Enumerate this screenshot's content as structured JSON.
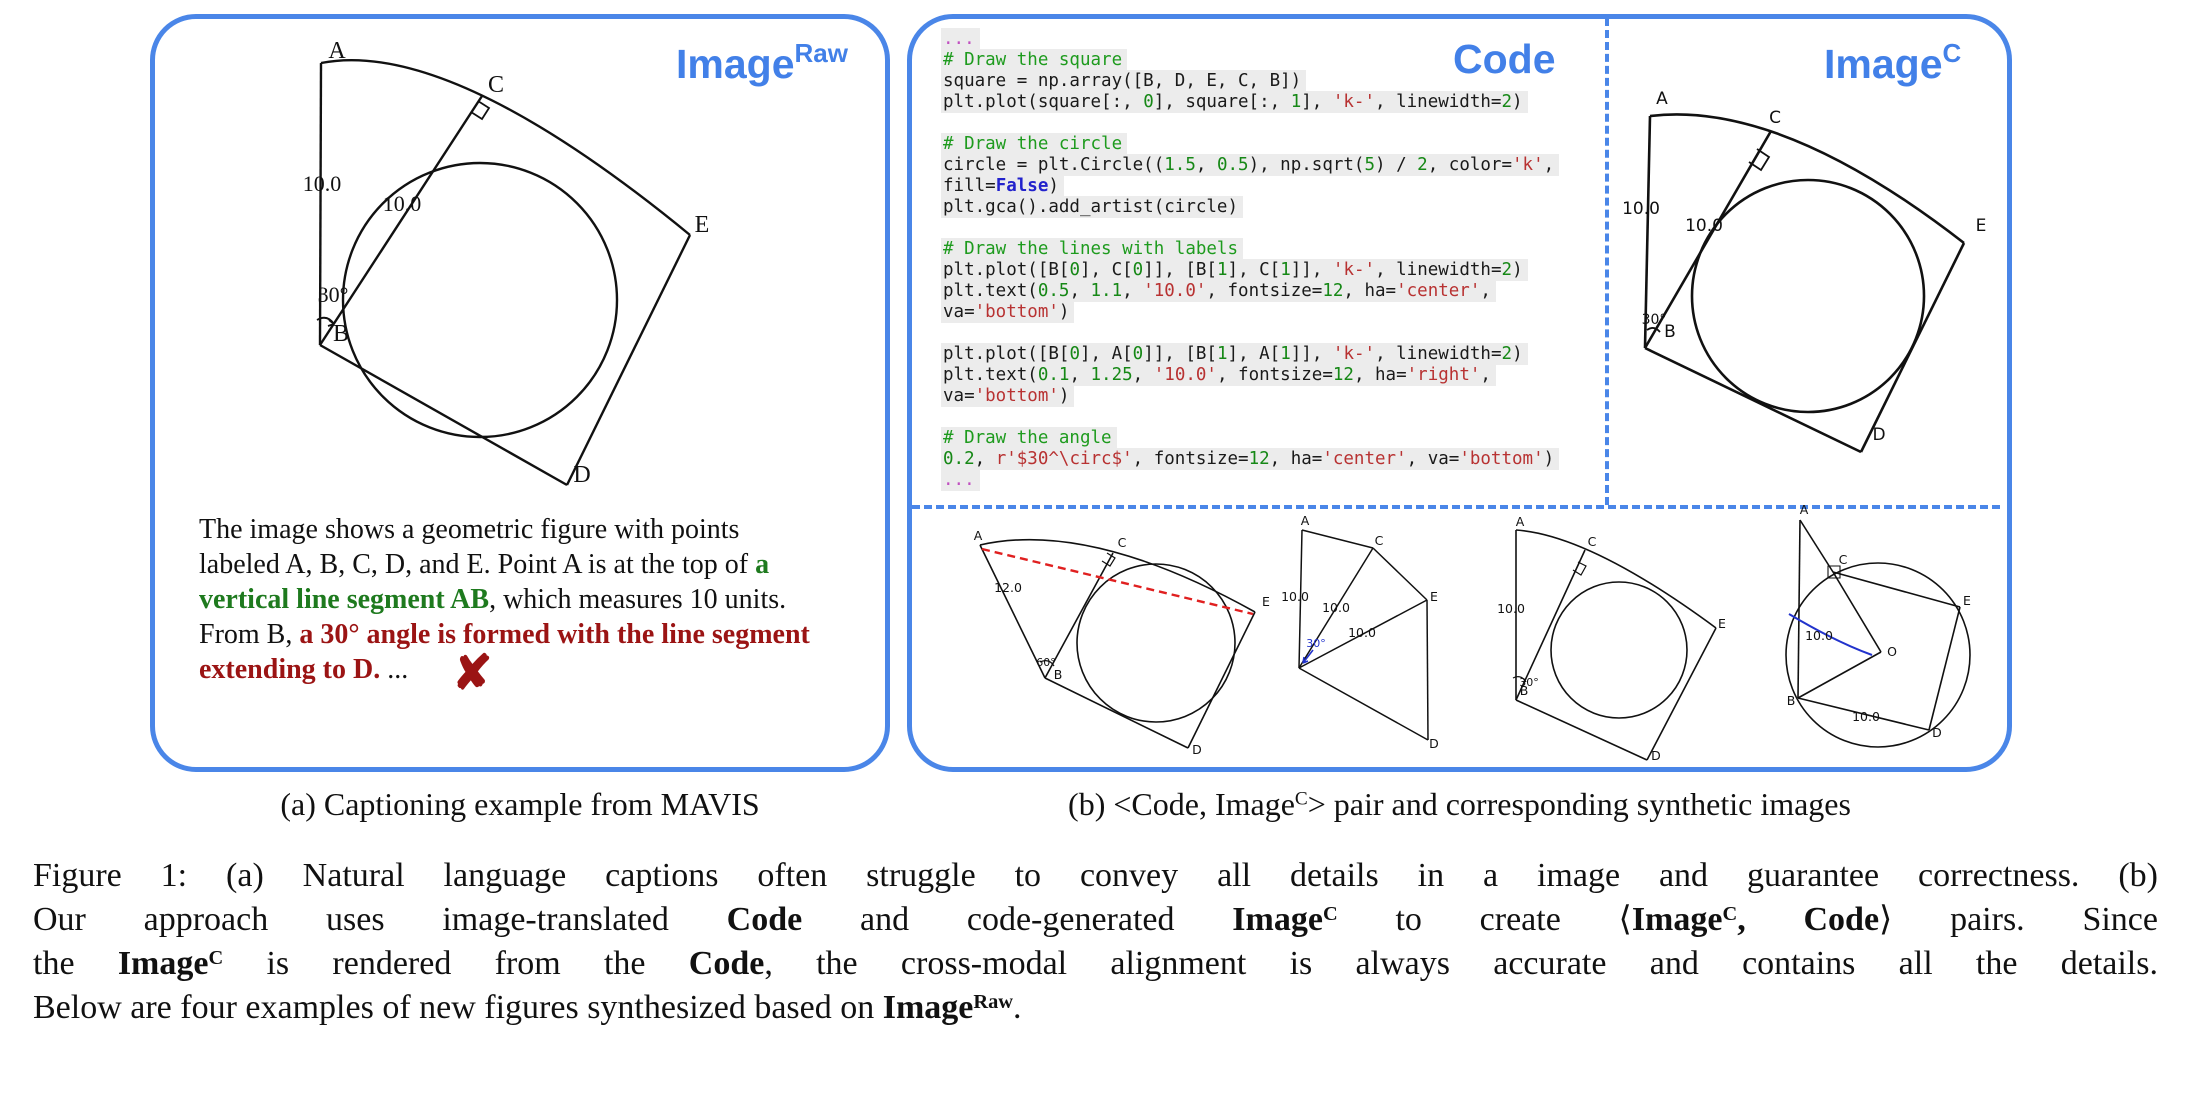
{
  "colors": {
    "panel_border": "#4a86e8",
    "badge_blue": "#4280e8",
    "caption_green": "#1e7a1e",
    "caption_red": "#9b1414",
    "code_comment": "#1e9b1e",
    "code_string": "#b83232",
    "code_number": "#168816",
    "code_keyword": "#2222cc",
    "code_ellipsis": "#c04fc0",
    "red_dashed_line": "#e02020",
    "blue_annotation": "#2233cc"
  },
  "panel_a": {
    "badge": {
      "base": "Image",
      "sup": "Raw"
    },
    "caption_lines": [
      [
        {
          "t": "The image shows a geometric figure with points",
          "s": "p"
        }
      ],
      [
        {
          "t": "labeled A, B, C, D, and E. Point A is at the top of ",
          "s": "p"
        },
        {
          "t": "a",
          "s": "g"
        }
      ],
      [
        {
          "t": "vertical line segment AB",
          "s": "g"
        },
        {
          "t": ", which measures 10 units.",
          "s": "p"
        }
      ],
      [
        {
          "t": "From B, ",
          "s": "p"
        },
        {
          "t": "a 30° angle is formed with the line segment",
          "s": "r"
        }
      ],
      [
        {
          "t": "extending to D.",
          "s": "r"
        },
        {
          "t": " ...",
          "s": "p"
        },
        {
          "t": "✘",
          "s": "x"
        }
      ]
    ]
  },
  "panel_b": {
    "code_badge": "Code",
    "imagec_badge": {
      "base": "Image",
      "sup": "C"
    },
    "code_lines": [
      [
        {
          "t": "...",
          "s": "e"
        }
      ],
      [
        {
          "t": "# Draw the square",
          "s": "c"
        }
      ],
      [
        {
          "t": "square = np.array([B, D, E, C, B])",
          "s": "p"
        }
      ],
      [
        {
          "t": "plt.plot(square[:, ",
          "s": "p"
        },
        {
          "t": "0",
          "s": "n"
        },
        {
          "t": "], square[:, ",
          "s": "p"
        },
        {
          "t": "1",
          "s": "n"
        },
        {
          "t": "], ",
          "s": "p"
        },
        {
          "t": "'k-'",
          "s": "s"
        },
        {
          "t": ", linewidth=",
          "s": "p"
        },
        {
          "t": "2",
          "s": "n"
        },
        {
          "t": ")",
          "s": "p"
        }
      ],
      [],
      [
        {
          "t": "# Draw the circle",
          "s": "c"
        }
      ],
      [
        {
          "t": "circle = plt.Circle((",
          "s": "p"
        },
        {
          "t": "1.5",
          "s": "n"
        },
        {
          "t": ", ",
          "s": "p"
        },
        {
          "t": "0.5",
          "s": "n"
        },
        {
          "t": "), np.sqrt(",
          "s": "p"
        },
        {
          "t": "5",
          "s": "n"
        },
        {
          "t": ") / ",
          "s": "p"
        },
        {
          "t": "2",
          "s": "n"
        },
        {
          "t": ", color=",
          "s": "p"
        },
        {
          "t": "'k'",
          "s": "s"
        },
        {
          "t": ",",
          "s": "p"
        }
      ],
      [
        {
          "t": "fill=",
          "s": "p"
        },
        {
          "t": "False",
          "s": "k"
        },
        {
          "t": ")",
          "s": "p"
        }
      ],
      [
        {
          "t": "plt.gca().add_artist(circle)",
          "s": "p"
        }
      ],
      [],
      [
        {
          "t": "# Draw the lines with labels",
          "s": "c"
        }
      ],
      [
        {
          "t": "plt.plot([B[",
          "s": "p"
        },
        {
          "t": "0",
          "s": "n"
        },
        {
          "t": "], C[",
          "s": "p"
        },
        {
          "t": "0",
          "s": "n"
        },
        {
          "t": "]], [B[",
          "s": "p"
        },
        {
          "t": "1",
          "s": "n"
        },
        {
          "t": "], C[",
          "s": "p"
        },
        {
          "t": "1",
          "s": "n"
        },
        {
          "t": "]], ",
          "s": "p"
        },
        {
          "t": "'k-'",
          "s": "s"
        },
        {
          "t": ", linewidth=",
          "s": "p"
        },
        {
          "t": "2",
          "s": "n"
        },
        {
          "t": ")",
          "s": "p"
        }
      ],
      [
        {
          "t": "plt.text(",
          "s": "p"
        },
        {
          "t": "0.5",
          "s": "n"
        },
        {
          "t": ", ",
          "s": "p"
        },
        {
          "t": "1.1",
          "s": "n"
        },
        {
          "t": ", ",
          "s": "p"
        },
        {
          "t": "'10.0'",
          "s": "s"
        },
        {
          "t": ", fontsize=",
          "s": "p"
        },
        {
          "t": "12",
          "s": "n"
        },
        {
          "t": ", ha=",
          "s": "p"
        },
        {
          "t": "'center'",
          "s": "s"
        },
        {
          "t": ",",
          "s": "p"
        }
      ],
      [
        {
          "t": "va=",
          "s": "p"
        },
        {
          "t": "'bottom'",
          "s": "s"
        },
        {
          "t": ")",
          "s": "p"
        }
      ],
      [],
      [
        {
          "t": "plt.plot([B[",
          "s": "p"
        },
        {
          "t": "0",
          "s": "n"
        },
        {
          "t": "], A[",
          "s": "p"
        },
        {
          "t": "0",
          "s": "n"
        },
        {
          "t": "]], [B[",
          "s": "p"
        },
        {
          "t": "1",
          "s": "n"
        },
        {
          "t": "], A[",
          "s": "p"
        },
        {
          "t": "1",
          "s": "n"
        },
        {
          "t": "]], ",
          "s": "p"
        },
        {
          "t": "'k-'",
          "s": "s"
        },
        {
          "t": ", linewidth=",
          "s": "p"
        },
        {
          "t": "2",
          "s": "n"
        },
        {
          "t": ")",
          "s": "p"
        }
      ],
      [
        {
          "t": "plt.text(",
          "s": "p"
        },
        {
          "t": "0.1",
          "s": "n"
        },
        {
          "t": ", ",
          "s": "p"
        },
        {
          "t": "1.25",
          "s": "n"
        },
        {
          "t": ", ",
          "s": "p"
        },
        {
          "t": "'10.0'",
          "s": "s"
        },
        {
          "t": ", fontsize=",
          "s": "p"
        },
        {
          "t": "12",
          "s": "n"
        },
        {
          "t": ", ha=",
          "s": "p"
        },
        {
          "t": "'right'",
          "s": "s"
        },
        {
          "t": ",",
          "s": "p"
        }
      ],
      [
        {
          "t": "va=",
          "s": "p"
        },
        {
          "t": "'bottom'",
          "s": "s"
        },
        {
          "t": ")",
          "s": "p"
        }
      ],
      [],
      [
        {
          "t": "# Draw the angle",
          "s": "c"
        }
      ],
      [
        {
          "t": "0.2",
          "s": "n"
        },
        {
          "t": ", ",
          "s": "p"
        },
        {
          "t": "r'$30^\\circ$'",
          "s": "s"
        },
        {
          "t": ", fontsize=",
          "s": "p"
        },
        {
          "t": "12",
          "s": "n"
        },
        {
          "t": ", ha=",
          "s": "p"
        },
        {
          "t": "'center'",
          "s": "s"
        },
        {
          "t": ", va=",
          "s": "p"
        },
        {
          "t": "'bottom'",
          "s": "s"
        },
        {
          "t": ")",
          "s": "p"
        }
      ],
      [
        {
          "t": "...",
          "s": "e"
        }
      ]
    ]
  },
  "figures": {
    "raw": {
      "A": "A",
      "B": "B",
      "C": "C",
      "D": "D",
      "E": "E",
      "len_ab": "10.0",
      "len_bc": "10.0",
      "angle": "30°"
    },
    "imagec": {
      "A": "A",
      "B": "B",
      "C": "C",
      "D": "D",
      "E": "E",
      "len_ab": "10.0",
      "len_bc": "10.0",
      "angle": "30°"
    },
    "s1": {
      "A": "A",
      "B": "B",
      "C": "C",
      "D": "D",
      "E": "E",
      "len_ab": "12.0",
      "angle": "60°"
    },
    "s2": {
      "A": "A",
      "C": "C",
      "D": "D",
      "E": "E",
      "l1": "10.0",
      "l2": "10.0",
      "l3": "10.0",
      "angle": "30°"
    },
    "s3": {
      "A": "A",
      "B": "B",
      "C": "C",
      "D": "D",
      "E": "E",
      "len_ab": "10.0",
      "angle": "30°"
    },
    "s4": {
      "A": "A",
      "B": "B",
      "C": "C",
      "D": "D",
      "E": "E",
      "O": "O",
      "l1": "10.0",
      "l2": "10.0"
    }
  },
  "captions": {
    "a": [
      [
        {
          "t": "(a) Captioning example from MAVIS",
          "s": "p"
        }
      ]
    ],
    "b": [
      [
        {
          "t": "(b) <Code, Image",
          "s": "p"
        },
        {
          "t": "C",
          "s": "psup"
        },
        {
          "t": "> pair and corresponding synthetic images",
          "s": "p"
        }
      ]
    ]
  },
  "figure_caption": {
    "lines": [
      [
        {
          "t": "Figure 1: (a) Natural language captions often struggle to convey all details in a image and guarantee correctness. (b)",
          "s": "p"
        }
      ],
      [
        {
          "t": "Our approach uses image-translated ",
          "s": "p"
        },
        {
          "t": "Code",
          "s": "b"
        },
        {
          "t": " and code-generated ",
          "s": "p"
        },
        {
          "t": "Image",
          "s": "b"
        },
        {
          "t": "C",
          "s": "bsup"
        },
        {
          "t": " to create ⟨",
          "s": "p"
        },
        {
          "t": "Image",
          "s": "b"
        },
        {
          "t": "C",
          "s": "bsup"
        },
        {
          "t": ", Code",
          "s": "b"
        },
        {
          "t": "⟩ pairs. Since",
          "s": "p"
        }
      ],
      [
        {
          "t": "the ",
          "s": "p"
        },
        {
          "t": "Image",
          "s": "b"
        },
        {
          "t": "C",
          "s": "bsup"
        },
        {
          "t": " is rendered from the ",
          "s": "p"
        },
        {
          "t": "Code",
          "s": "b"
        },
        {
          "t": ", the cross-modal alignment is always accurate and contains all the details.",
          "s": "p"
        }
      ],
      [
        {
          "t": "Below are four examples of new figures synthesized based on ",
          "s": "p"
        },
        {
          "t": "Image",
          "s": "b"
        },
        {
          "t": "Raw",
          "s": "bsup"
        },
        {
          "t": ".",
          "s": "p"
        }
      ]
    ]
  }
}
